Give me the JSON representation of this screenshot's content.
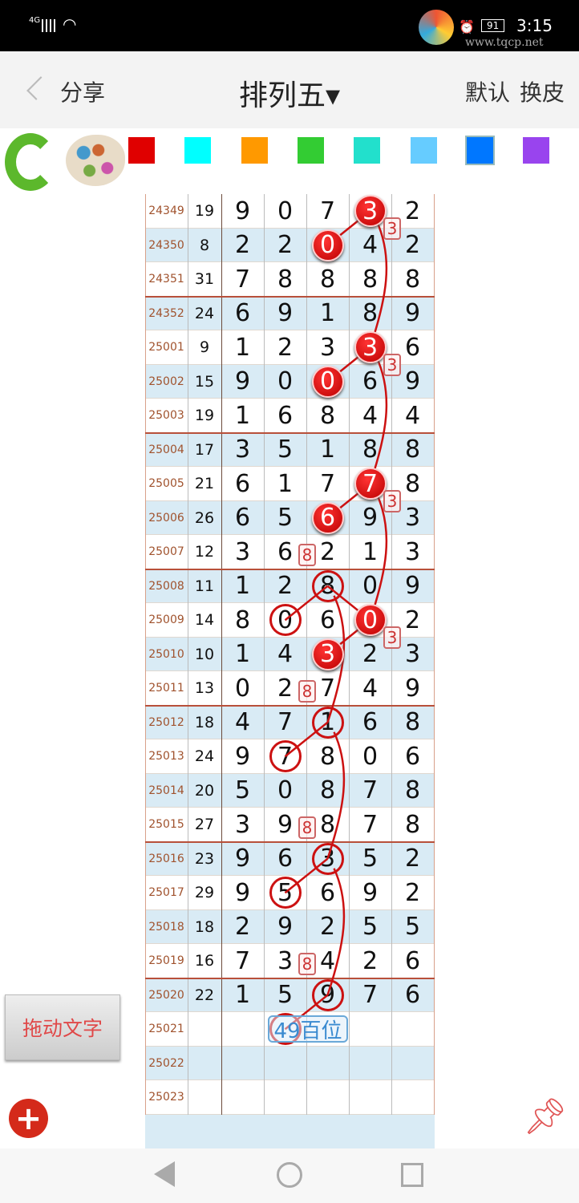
{
  "status_bar": {
    "network": "4G",
    "time": "3:15",
    "battery": "91",
    "watermark": "www.tqcp.net"
  },
  "header": {
    "back_icon": "chevron-left-icon",
    "share": "分享",
    "title": "排列五▾",
    "default": "默认",
    "skin": "换皮"
  },
  "toolbar": {
    "refresh_icon": "green-refresh-arrow-icon",
    "palette_icon": "paint-palette-icon",
    "swatches": [
      "#e00000",
      "#00ffff",
      "#ff9900",
      "#33cc33",
      "#22e0cc",
      "#66ccff",
      "#0077ff",
      "#9944ee"
    ],
    "selected_swatch": "#0077ff"
  },
  "table": {
    "rows": [
      {
        "issue": "24349",
        "sum": "19",
        "d": [
          "9",
          "0",
          "7",
          "3",
          "2"
        ],
        "marks": [
          {
            "c": 3,
            "t": "filled"
          }
        ]
      },
      {
        "issue": "24350",
        "sum": "8",
        "d": [
          "2",
          "2",
          "0",
          "4",
          "2"
        ],
        "marks": [
          {
            "c": 2,
            "t": "filled"
          }
        ]
      },
      {
        "issue": "24351",
        "sum": "31",
        "d": [
          "7",
          "8",
          "8",
          "8",
          "8"
        ],
        "marks": []
      },
      {
        "issue": "24352",
        "sum": "24",
        "d": [
          "6",
          "9",
          "1",
          "8",
          "9"
        ],
        "marks": []
      },
      {
        "issue": "25001",
        "sum": "9",
        "d": [
          "1",
          "2",
          "3",
          "3",
          "6"
        ],
        "marks": [
          {
            "c": 3,
            "t": "filled"
          }
        ]
      },
      {
        "issue": "25002",
        "sum": "15",
        "d": [
          "9",
          "0",
          "0",
          "6",
          "9"
        ],
        "marks": [
          {
            "c": 2,
            "t": "filled"
          }
        ]
      },
      {
        "issue": "25003",
        "sum": "19",
        "d": [
          "1",
          "6",
          "8",
          "4",
          "4"
        ],
        "marks": []
      },
      {
        "issue": "25004",
        "sum": "17",
        "d": [
          "3",
          "5",
          "1",
          "8",
          "8"
        ],
        "marks": []
      },
      {
        "issue": "25005",
        "sum": "21",
        "d": [
          "6",
          "1",
          "7",
          "7",
          "8"
        ],
        "marks": [
          {
            "c": 3,
            "t": "filled"
          }
        ]
      },
      {
        "issue": "25006",
        "sum": "26",
        "d": [
          "6",
          "5",
          "6",
          "9",
          "3"
        ],
        "marks": [
          {
            "c": 2,
            "t": "filled"
          }
        ]
      },
      {
        "issue": "25007",
        "sum": "12",
        "d": [
          "3",
          "6",
          "2",
          "1",
          "3"
        ],
        "marks": []
      },
      {
        "issue": "25008",
        "sum": "11",
        "d": [
          "1",
          "2",
          "8",
          "0",
          "9"
        ],
        "marks": [
          {
            "c": 2,
            "t": "ring"
          }
        ]
      },
      {
        "issue": "25009",
        "sum": "14",
        "d": [
          "8",
          "0",
          "6",
          "0",
          "2"
        ],
        "marks": [
          {
            "c": 1,
            "t": "ring"
          },
          {
            "c": 3,
            "t": "filled"
          }
        ]
      },
      {
        "issue": "25010",
        "sum": "10",
        "d": [
          "1",
          "4",
          "3",
          "2",
          "3"
        ],
        "marks": [
          {
            "c": 2,
            "t": "filled"
          }
        ]
      },
      {
        "issue": "25011",
        "sum": "13",
        "d": [
          "0",
          "2",
          "7",
          "4",
          "9"
        ],
        "marks": []
      },
      {
        "issue": "25012",
        "sum": "18",
        "d": [
          "4",
          "7",
          "1",
          "6",
          "8"
        ],
        "marks": [
          {
            "c": 2,
            "t": "ring"
          }
        ]
      },
      {
        "issue": "25013",
        "sum": "24",
        "d": [
          "9",
          "7",
          "8",
          "0",
          "6"
        ],
        "marks": [
          {
            "c": 1,
            "t": "ring"
          }
        ]
      },
      {
        "issue": "25014",
        "sum": "20",
        "d": [
          "5",
          "0",
          "8",
          "7",
          "8"
        ],
        "marks": []
      },
      {
        "issue": "25015",
        "sum": "27",
        "d": [
          "3",
          "9",
          "8",
          "7",
          "8"
        ],
        "marks": []
      },
      {
        "issue": "25016",
        "sum": "23",
        "d": [
          "9",
          "6",
          "3",
          "5",
          "2"
        ],
        "marks": [
          {
            "c": 2,
            "t": "ring"
          }
        ]
      },
      {
        "issue": "25017",
        "sum": "29",
        "d": [
          "9",
          "5",
          "6",
          "9",
          "2"
        ],
        "marks": [
          {
            "c": 1,
            "t": "ring"
          }
        ]
      },
      {
        "issue": "25018",
        "sum": "18",
        "d": [
          "2",
          "9",
          "2",
          "5",
          "5"
        ],
        "marks": []
      },
      {
        "issue": "25019",
        "sum": "16",
        "d": [
          "7",
          "3",
          "4",
          "2",
          "6"
        ],
        "marks": []
      },
      {
        "issue": "25020",
        "sum": "22",
        "d": [
          "1",
          "5",
          "9",
          "7",
          "6"
        ],
        "marks": [
          {
            "c": 2,
            "t": "ring"
          }
        ]
      },
      {
        "issue": "25021",
        "sum": "",
        "d": [
          "",
          "",
          "",
          "",
          ""
        ],
        "marks": [
          {
            "c": 1,
            "t": "ring"
          }
        ]
      },
      {
        "issue": "25022",
        "sum": "",
        "d": [
          "",
          "",
          "",
          "",
          ""
        ],
        "marks": []
      },
      {
        "issue": "25023",
        "sum": "",
        "d": [
          "",
          "",
          "",
          "",
          ""
        ],
        "marks": []
      }
    ],
    "tags": [
      {
        "row": 0,
        "col": 4,
        "text": "3"
      },
      {
        "row": 4,
        "col": 4,
        "text": "3"
      },
      {
        "row": 8,
        "col": 4,
        "text": "3"
      },
      {
        "row": 12,
        "col": 4,
        "text": "3"
      },
      {
        "row": 10,
        "col": 2,
        "text": "8"
      },
      {
        "row": 14,
        "col": 2,
        "text": "8"
      },
      {
        "row": 18,
        "col": 2,
        "text": "8"
      },
      {
        "row": 22,
        "col": 2,
        "text": "8"
      }
    ],
    "annotation": {
      "row": 24,
      "text": "49百位"
    },
    "accent": "#cc1111"
  },
  "side": {
    "drag_text_button": "拖动文字",
    "add_icon": "add-circle-icon",
    "pin_icon": "pushpin-icon"
  },
  "nav": {
    "back": "back-triangle-icon",
    "home": "home-circle-icon",
    "recent": "recent-square-icon"
  }
}
